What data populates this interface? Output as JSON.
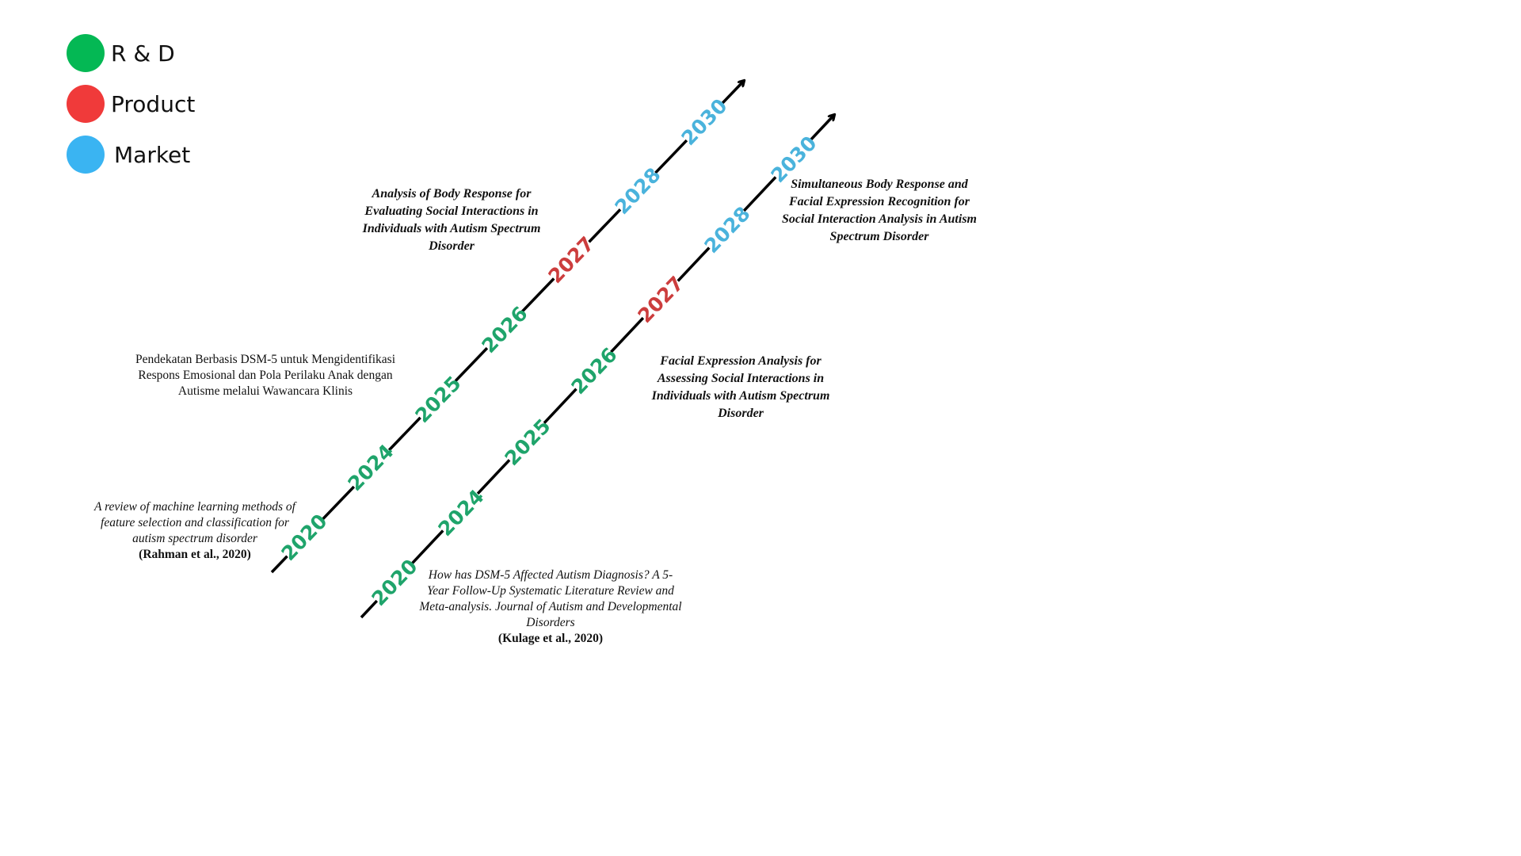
{
  "colors": {
    "rnd": "#04b854",
    "product": "#f03a3a",
    "market": "#3ab4f2",
    "rnd_text": "#1fa46b",
    "product_text": "#cc3d3d",
    "market_text": "#4ab3dc",
    "axis": "#000000"
  },
  "legend": [
    {
      "label": "R & D",
      "color": "#04b854"
    },
    {
      "label": "Product",
      "color": "#f03a3a"
    },
    {
      "label": "Market",
      "color": "#3ab4f2"
    }
  ],
  "timelines": [
    {
      "years": [
        {
          "label": "2020",
          "category": "rnd"
        },
        {
          "label": "2024",
          "category": "rnd"
        },
        {
          "label": "2025",
          "category": "rnd"
        },
        {
          "label": "2026",
          "category": "rnd"
        },
        {
          "label": "2027",
          "category": "product"
        },
        {
          "label": "2028",
          "category": "market"
        },
        {
          "label": "2030",
          "category": "market"
        }
      ]
    },
    {
      "years": [
        {
          "label": "2020",
          "category": "rnd"
        },
        {
          "label": "2024",
          "category": "rnd"
        },
        {
          "label": "2025",
          "category": "rnd"
        },
        {
          "label": "2026",
          "category": "rnd"
        },
        {
          "label": "2027",
          "category": "product"
        },
        {
          "label": "2028",
          "category": "market"
        },
        {
          "label": "2030",
          "category": "market"
        }
      ]
    }
  ],
  "notes": {
    "note_1": {
      "lines": [
        "A review of machine learning methods of",
        "feature selection and classification for",
        "autism spectrum disorder"
      ],
      "citation": "(Rahman et al., 2020)"
    },
    "note_2": {
      "lines": [
        "Pendekatan Berbasis DSM-5 untuk Mengidentifikasi",
        "Respons Emosional dan Pola Perilaku Anak dengan",
        "Autisme melalui Wawancara Klinis"
      ]
    },
    "note_3": {
      "lines": [
        "Analysis of Body Response for",
        "Evaluating Social Interactions in",
        "Individuals with Autism Spectrum",
        "Disorder"
      ]
    },
    "note_4": {
      "lines": [
        "How has DSM-5 Affected Autism Diagnosis? A 5-",
        "Year Follow-Up Systematic Literature Review and",
        "Meta-analysis. Journal of Autism and Developmental",
        "Disorders"
      ],
      "citation": "(Kulage et al., 2020)"
    },
    "note_5": {
      "lines": [
        "Facial Expression Analysis for",
        "Assessing Social Interactions in",
        "Individuals with Autism Spectrum",
        "Disorder"
      ]
    },
    "note_6": {
      "lines": [
        "Simultaneous Body Response and",
        "Facial Expression Recognition for",
        "Social Interaction Analysis in Autism",
        "Spectrum Disorder"
      ]
    }
  }
}
